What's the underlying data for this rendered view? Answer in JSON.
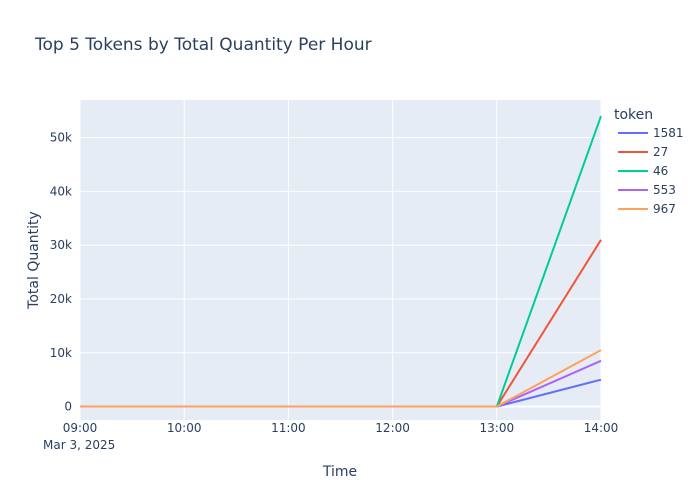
{
  "chart_data": {
    "type": "line",
    "title": "Top 5 Tokens by Total Quantity Per Hour",
    "xlabel": "Time",
    "ylabel": "Total Quantity",
    "legend_title": "token",
    "legend_position": "right",
    "grid": true,
    "x": [
      "09:00",
      "10:00",
      "11:00",
      "12:00",
      "13:00",
      "14:00"
    ],
    "x_date_label": "Mar 3, 2025",
    "ylim": [
      -2500,
      57000
    ],
    "y_ticks": [
      0,
      10000,
      20000,
      30000,
      40000,
      50000
    ],
    "y_tick_labels": [
      "0",
      "10k",
      "20k",
      "30k",
      "40k",
      "50k"
    ],
    "series": [
      {
        "name": "1581",
        "color": "#636efa",
        "values": [
          0,
          0,
          0,
          0,
          0,
          5000
        ]
      },
      {
        "name": "27",
        "color": "#ef553b",
        "values": [
          0,
          0,
          0,
          0,
          0,
          31000
        ]
      },
      {
        "name": "46",
        "color": "#00cc96",
        "values": [
          0,
          0,
          0,
          0,
          0,
          54000
        ]
      },
      {
        "name": "553",
        "color": "#ab63fa",
        "values": [
          0,
          0,
          0,
          0,
          0,
          8500
        ]
      },
      {
        "name": "967",
        "color": "#ffa15a",
        "values": [
          0,
          0,
          0,
          0,
          0,
          10500
        ]
      }
    ]
  }
}
